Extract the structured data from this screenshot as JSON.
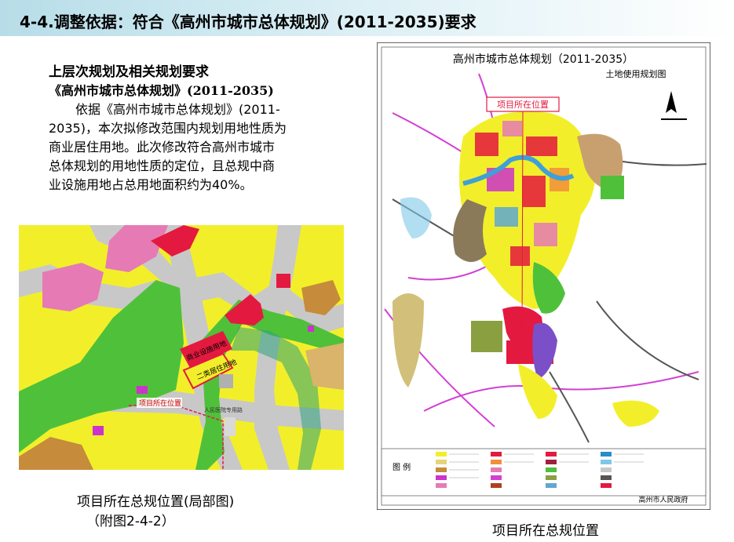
{
  "header": {
    "title": "4-4.调整依据：符合《高州市城市总体规划》(2011-2035)要求"
  },
  "text": {
    "heading1": "上层次规划及相关规划要求",
    "heading2": "《高州市城市总体规划》(2011-2035)",
    "paragraph_lines": [
      "依据《高州市城市总体规划》(2011-",
      "2035)，本次拟修改范围内规划用地性质为",
      "商业居住用地。此次修改符合高州市城市",
      "总体规划的用地性质的定位，且总规中商",
      "业设施用地占总用地面积约为40%。"
    ]
  },
  "left_map": {
    "labels": {
      "commercial": "商业设施用地",
      "residential": "二类居住用地",
      "project": "项目所在位置",
      "road": "人民医院专用路"
    }
  },
  "right_map": {
    "title": "高州市城市总体规划（2011-2035）",
    "subtitle": "土地使用规划图",
    "callout": "项目所在位置",
    "legend_label": "图 例",
    "issuer": "高州市人民政府"
  },
  "captions": {
    "left_line1": "项目所在总规位置(局部图)",
    "left_line2": "（附图2-4-2）",
    "right_line1": "项目所在总规位置"
  },
  "colors": {
    "residential_yellow": "#f2ef2a",
    "green_space": "#52c236",
    "commercial_red": "#e4193f",
    "header_bg": "#b7dde8"
  }
}
